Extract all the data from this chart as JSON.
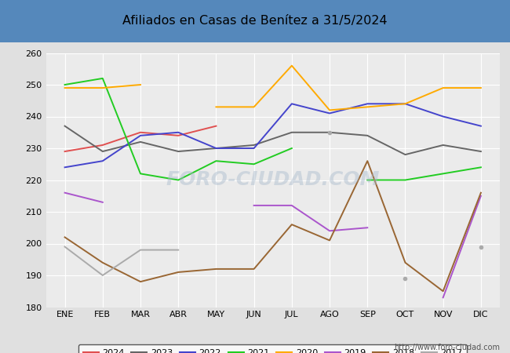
{
  "title": "Afiliados en Casas de Benítez a 31/5/2024",
  "ylim": [
    180,
    260
  ],
  "yticks": [
    180,
    190,
    200,
    210,
    220,
    230,
    240,
    250,
    260
  ],
  "months": [
    "ENE",
    "FEB",
    "MAR",
    "ABR",
    "MAY",
    "JUN",
    "JUL",
    "AGO",
    "SEP",
    "OCT",
    "NOV",
    "DIC"
  ],
  "series": {
    "2024": {
      "color": "#e05050",
      "data": [
        229,
        231,
        235,
        234,
        237,
        null,
        null,
        null,
        null,
        null,
        null,
        null
      ]
    },
    "2023": {
      "color": "#666666",
      "data": [
        237,
        229,
        232,
        229,
        230,
        231,
        235,
        235,
        234,
        228,
        231,
        229
      ]
    },
    "2022": {
      "color": "#4444cc",
      "data": [
        224,
        226,
        234,
        235,
        230,
        230,
        244,
        241,
        244,
        244,
        240,
        237
      ]
    },
    "2021": {
      "color": "#22cc22",
      "data": [
        250,
        252,
        222,
        220,
        226,
        225,
        230,
        null,
        220,
        220,
        222,
        224
      ]
    },
    "2020": {
      "color": "#ffaa00",
      "data": [
        249,
        249,
        250,
        null,
        243,
        243,
        256,
        242,
        243,
        244,
        249,
        249
      ]
    },
    "2019": {
      "color": "#aa55cc",
      "data": [
        216,
        213,
        null,
        null,
        null,
        212,
        212,
        204,
        205,
        null,
        183,
        215
      ]
    },
    "2018": {
      "color": "#996633",
      "data": [
        202,
        194,
        188,
        191,
        192,
        192,
        206,
        201,
        226,
        194,
        185,
        216
      ]
    },
    "2017": {
      "color": "#aaaaaa",
      "data": [
        199,
        190,
        198,
        198,
        null,
        null,
        null,
        235,
        null,
        189,
        null,
        199
      ]
    }
  },
  "watermark": "FORO-CIUDAD.COM",
  "footer": "http://www.foro-ciudad.com",
  "bg_color": "#e0e0e0",
  "plot_bg": "#ebebeb",
  "header_bg": "#5588bb",
  "grid_color": "#ffffff"
}
